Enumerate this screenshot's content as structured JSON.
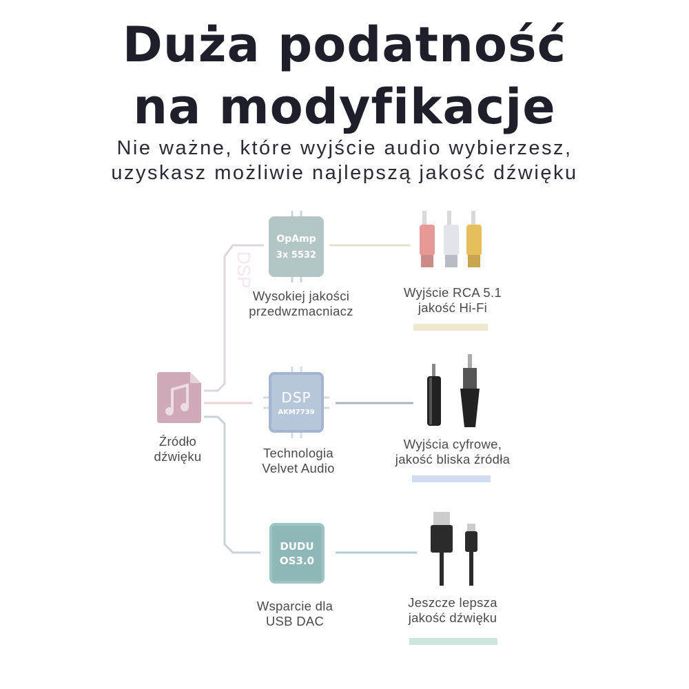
{
  "header": {
    "title_line1": "Duża podatność",
    "title_line2": "na modyfikacje",
    "subtitle_line1": "Nie ważne, które wyjście audio wybierzesz,",
    "subtitle_line2": "uzyskasz możliwie najlepszą jakość dźwięku"
  },
  "source": {
    "icon": "music-file-icon",
    "line1": "Źródło",
    "line2": "dźwięku",
    "color": "#cfa9b7"
  },
  "chips": [
    {
      "line1": "OpAmp",
      "line2": "3x 5532",
      "label1": "Wysokiej jakości",
      "label2": "przedwzmacniacz",
      "color": "#b4c5c6"
    },
    {
      "line1": "DSP",
      "line2": "AKM7739",
      "label1": "Technologia",
      "label2": "Velvet Audio",
      "color": "#b8c6dc"
    },
    {
      "line1": "DUDU",
      "line2": "OS3.0",
      "label1": "Wsparcie dla",
      "label2": "USB DAC",
      "color": "#8fb7b8"
    }
  ],
  "outputs": [
    {
      "icon": "rca-plugs-icon",
      "label1": "Wyjście RCA 5.1",
      "label2": "jakość Hi-Fi",
      "bar_color": "#efe8cf"
    },
    {
      "icon": "digital-plugs-icon",
      "label1": "Wyjścia cyfrowe,",
      "label2": "jakość bliska źródła",
      "bar_color": "#d0dcf2"
    },
    {
      "icon": "usb-cable-icon",
      "label1": "Jeszcze lepsza",
      "label2": "jakość dźwięku",
      "bar_color": "#cde6dd"
    }
  ],
  "watermark": "DSP"
}
